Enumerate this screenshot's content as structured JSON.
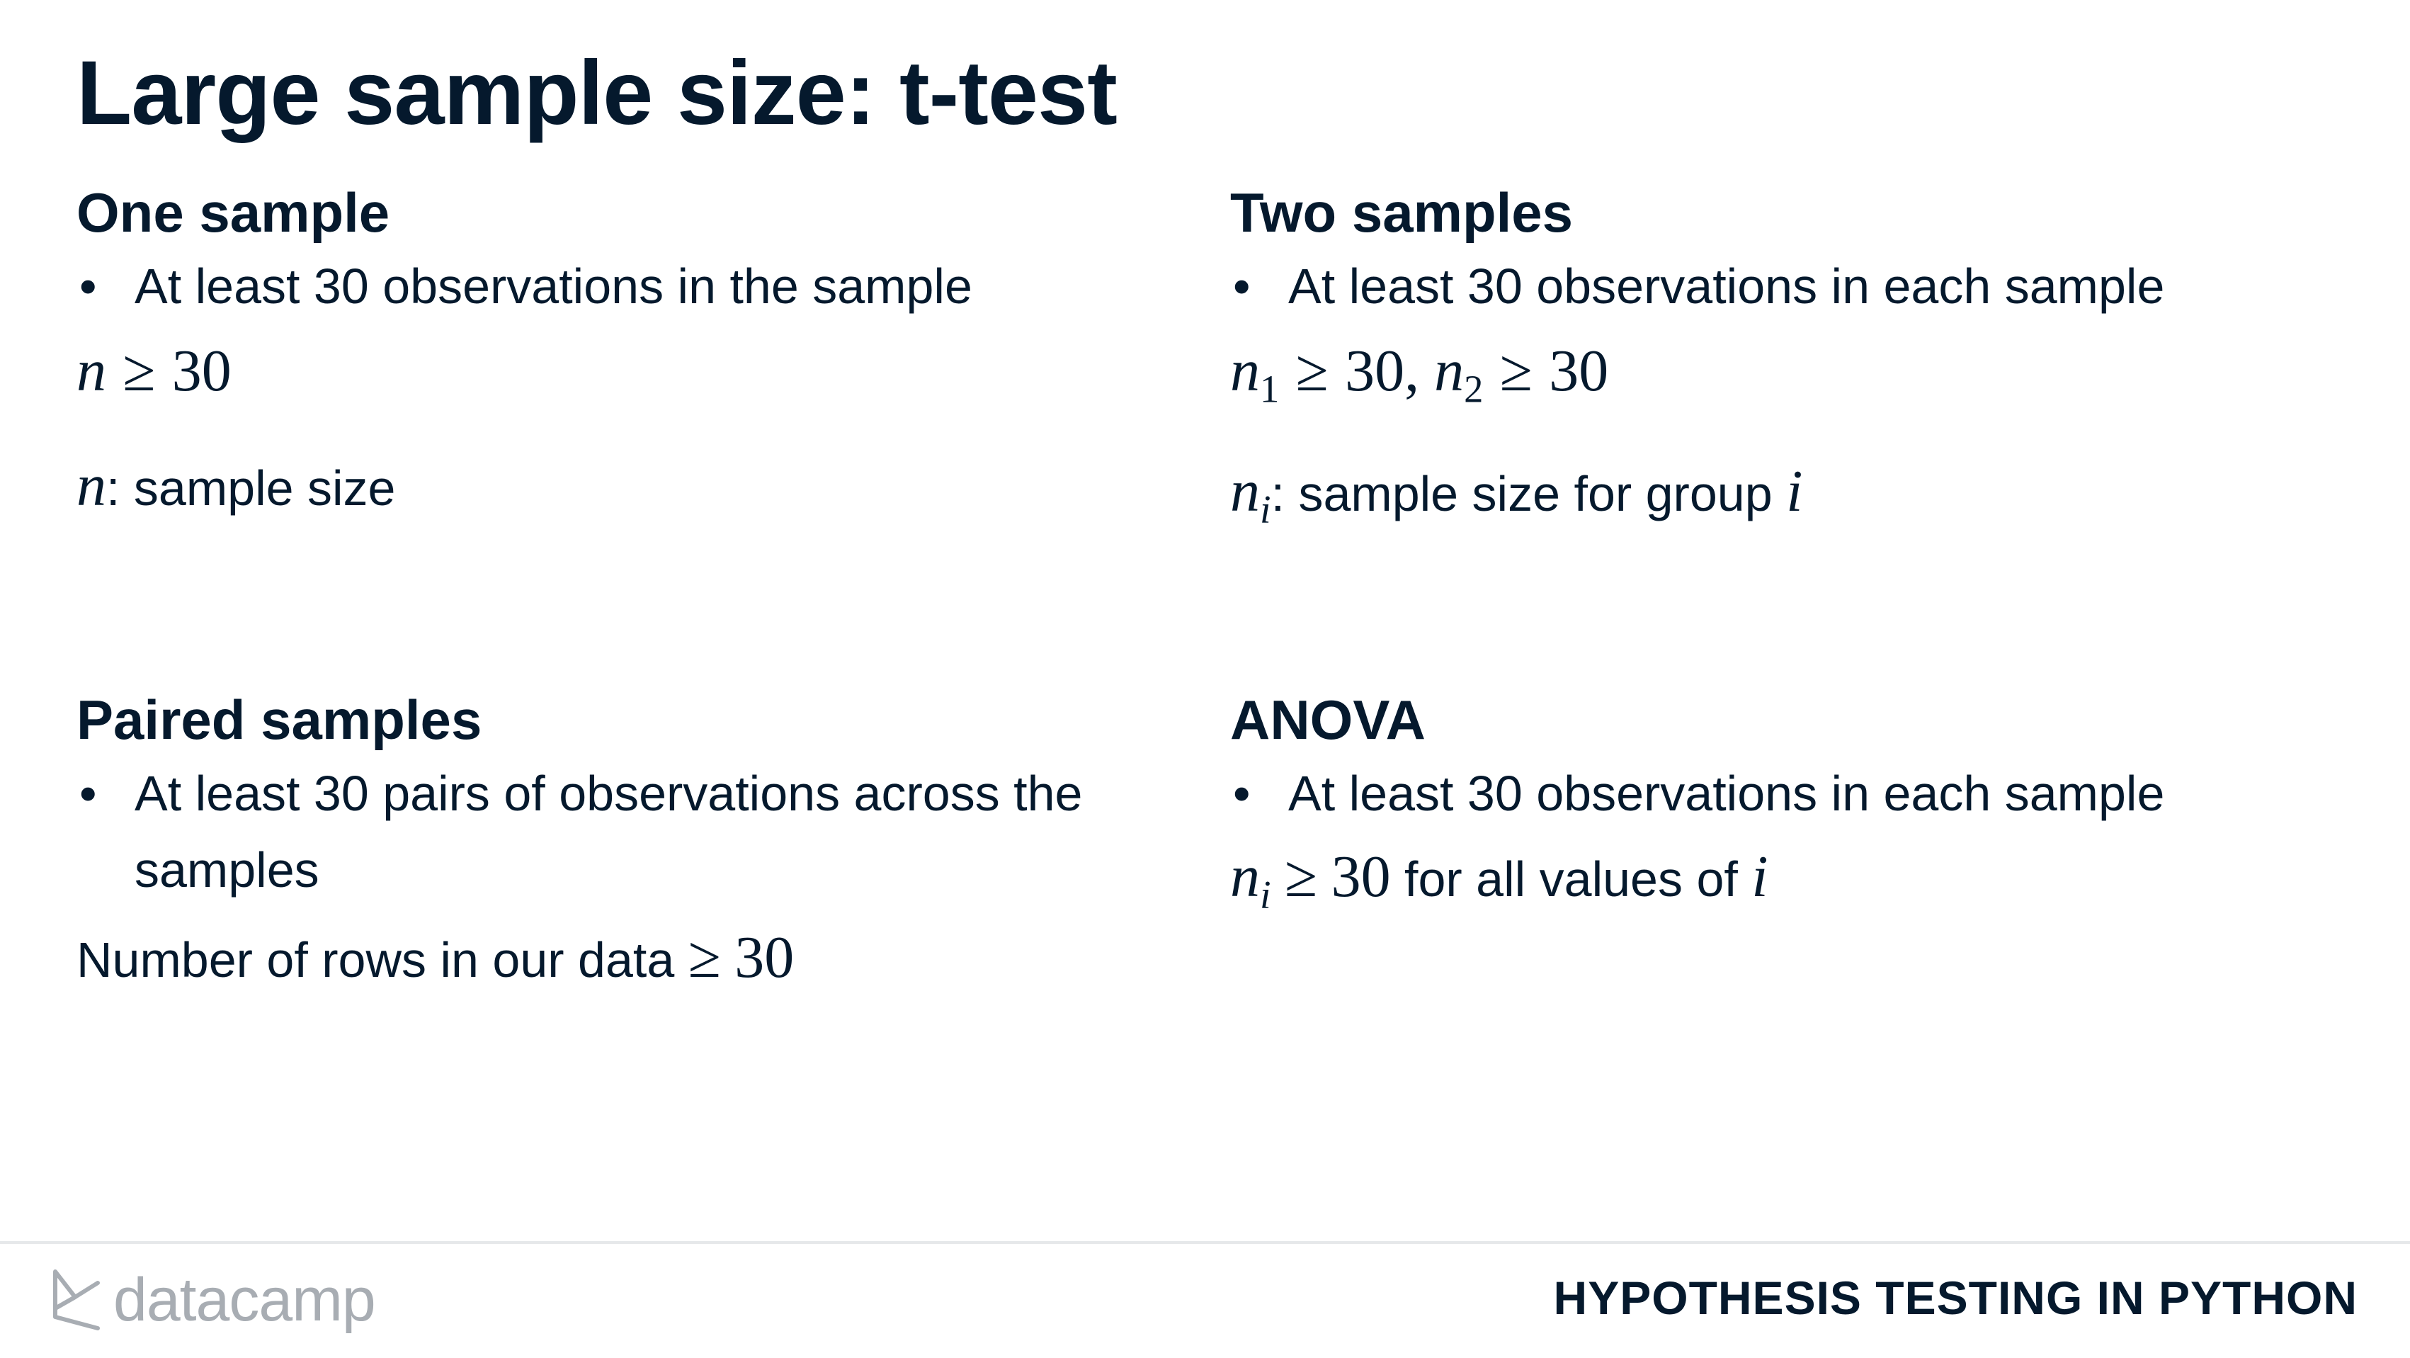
{
  "slide": {
    "title": "Large sample size: t-test"
  },
  "one_sample": {
    "heading": "One sample",
    "bullet": "At least 30 observations in the sample",
    "formula": {
      "var": "n",
      "op": "≥",
      "value": "30"
    },
    "definition": {
      "var": "n",
      "text": ": sample size"
    }
  },
  "two_samples": {
    "heading": "Two samples",
    "bullet": "At least 30 observations in each sample",
    "formula": {
      "var1": "n",
      "sub1": "1",
      "op1": "≥",
      "value1": "30",
      "sep": ", ",
      "var2": "n",
      "sub2": "2",
      "op2": "≥",
      "value2": "30"
    },
    "definition": {
      "var": "n",
      "sub": "i",
      "text": ": sample size for group ",
      "index": "i"
    }
  },
  "paired_samples": {
    "heading": "Paired samples",
    "bullet_line1": "At least 30 pairs of observations across the",
    "bullet_line2": "samples",
    "statement": {
      "text": "Number of rows in our data ",
      "op": "≥",
      "value": "30"
    }
  },
  "anova": {
    "heading": "ANOVA",
    "bullet": "At least 30 observations in each sample",
    "statement": {
      "var": "n",
      "sub": "i",
      "op": "≥",
      "value": "30",
      "text": " for all values of ",
      "index": "i"
    }
  },
  "footer": {
    "logo_text": "datacamp",
    "course_title": "HYPOTHESIS TESTING IN PYTHON",
    "logo_icon": "datacamp-logo-icon"
  }
}
